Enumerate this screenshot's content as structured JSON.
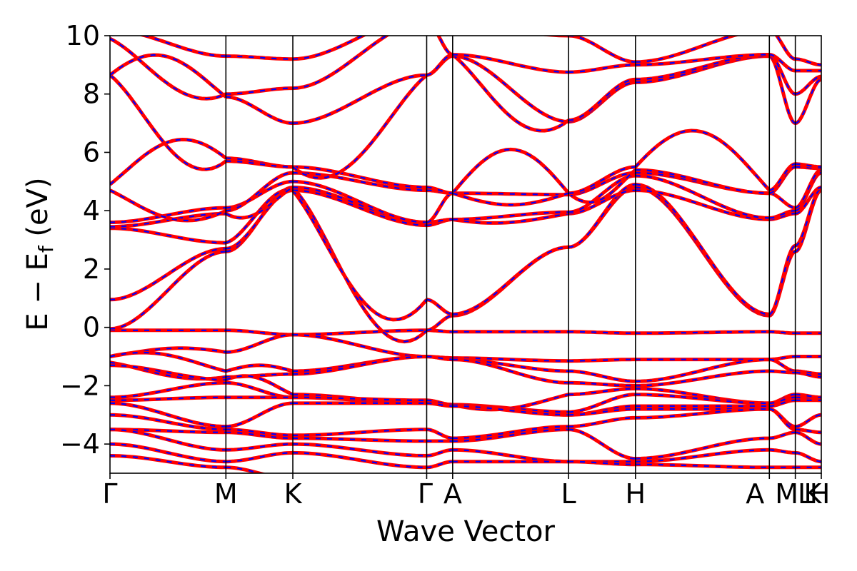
{
  "chart_data": {
    "type": "line",
    "title": "",
    "xlabel": "Wave Vector",
    "ylabel": {
      "main": "E − E",
      "subscript": "f",
      "unit": " (eV)"
    },
    "ylim": [
      -5,
      10
    ],
    "yticks": [
      -4,
      -2,
      0,
      2,
      4,
      6,
      8,
      10
    ],
    "ytick_labels": [
      "−4",
      "−2",
      "0",
      "2",
      "4",
      "6",
      "8",
      "10"
    ],
    "kpoint_path": {
      "positions": [
        0,
        0.866,
        1.366,
        2.366,
        2.56,
        3.426,
        3.926,
        4.926,
        5.12,
        5.314
      ],
      "labels": [
        "Γ",
        "M",
        "K",
        "Γ",
        "A",
        "L",
        "H",
        "A",
        "M|L",
        "K|H"
      ],
      "extra_labels": [
        "M",
        "L",
        "K",
        "H"
      ]
    },
    "grid": false,
    "legend": "none",
    "colors": {
      "band_primary": "#ff0000",
      "band_secondary": "#0000ff",
      "axis": "#000000"
    },
    "series": [
      {
        "values": [
          -0.1,
          -0.05,
          0.0,
          0.1,
          0.4,
          2.6,
          2.65,
          2.7,
          3.7,
          3.9,
          4.0,
          3.8,
          0.05,
          0.4,
          4.1,
          3.9,
          3.8,
          4.0,
          0.4,
          0.6,
          2.6
        ]
      },
      {
        "values": [
          0.95,
          1.6,
          2.4,
          2.9,
          2.6,
          3.2,
          3.9,
          4.3,
          4.6,
          3.9,
          3.4,
          3.0,
          2.0,
          1.0,
          0.4,
          2.7,
          2.8,
          3.9,
          4.4,
          4.7,
          5.3
        ]
      }
    ]
  }
}
